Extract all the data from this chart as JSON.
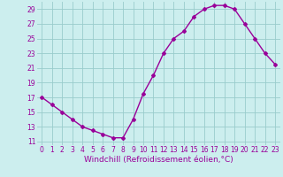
{
  "x": [
    0,
    1,
    2,
    3,
    4,
    5,
    6,
    7,
    8,
    9,
    10,
    11,
    12,
    13,
    14,
    15,
    16,
    17,
    18,
    19,
    20,
    21,
    22,
    23
  ],
  "y": [
    17,
    16,
    15,
    14,
    13,
    12.5,
    12,
    11.5,
    11.5,
    14,
    17.5,
    20,
    23,
    25,
    26,
    28,
    29,
    29.5,
    29.5,
    29,
    27,
    25,
    23,
    21.5
  ],
  "line_color": "#990099",
  "marker": "D",
  "marker_size": 2.0,
  "bg_color": "#cceeee",
  "grid_color": "#99cccc",
  "xlabel": "Windchill (Refroidissement éolien,°C)",
  "xlabel_color": "#990099",
  "ylabel_ticks": [
    11,
    13,
    15,
    17,
    19,
    21,
    23,
    25,
    27,
    29
  ],
  "xtick_labels": [
    "0",
    "1",
    "2",
    "3",
    "4",
    "5",
    "6",
    "7",
    "8",
    "9",
    "10",
    "11",
    "12",
    "13",
    "14",
    "15",
    "16",
    "17",
    "18",
    "19",
    "20",
    "21",
    "22",
    "23"
  ],
  "ylim": [
    10.5,
    30.0
  ],
  "xlim": [
    -0.5,
    23.5
  ],
  "tick_color": "#990099",
  "tick_fontsize": 5.5,
  "xlabel_fontsize": 6.5,
  "line_width": 1.0
}
